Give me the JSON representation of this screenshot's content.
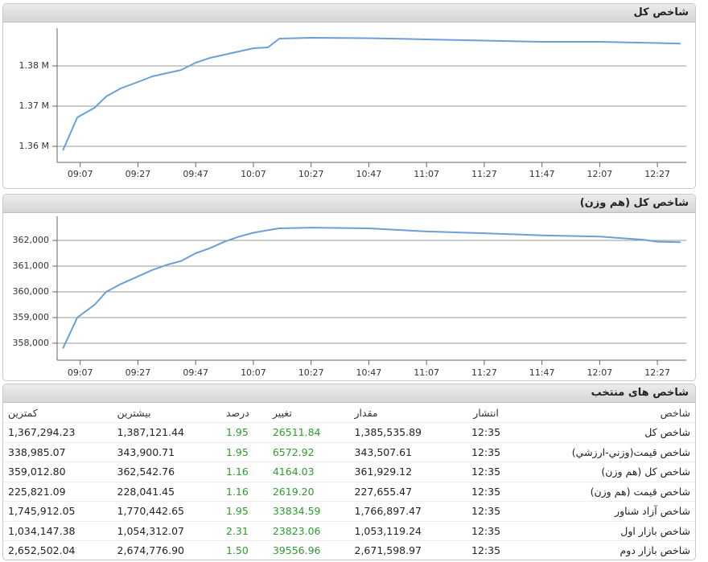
{
  "chart_data": [
    {
      "type": "line",
      "title": "شاخص کل",
      "x": [
        "09:01",
        "09:06",
        "09:12",
        "09:16",
        "09:21",
        "09:27",
        "09:32",
        "09:37",
        "09:42",
        "09:47",
        "09:52",
        "09:57",
        "10:02",
        "10:07",
        "10:12",
        "10:16",
        "10:27",
        "10:47",
        "11:07",
        "11:27",
        "11:47",
        "12:07",
        "12:27",
        "12:35"
      ],
      "series": [
        {
          "name": "شاخص کل",
          "color": "#6a9fd8",
          "values": [
            1359000,
            1367200,
            1369600,
            1372400,
            1374400,
            1376000,
            1377400,
            1378200,
            1379000,
            1380800,
            1382000,
            1382800,
            1383600,
            1384400,
            1384600,
            1386800,
            1387000,
            1386900,
            1386600,
            1386300,
            1386000,
            1386000,
            1385700,
            1385536
          ]
        }
      ],
      "xlim": [
        "08:59",
        "12:37"
      ],
      "xticks": [
        "09:07",
        "09:27",
        "09:47",
        "10:07",
        "10:27",
        "10:47",
        "11:07",
        "11:27",
        "11:47",
        "12:07",
        "12:27"
      ],
      "ylim": [
        1356000,
        1389400
      ],
      "yticks": [
        {
          "value": 1360000,
          "label": "1.36 M"
        },
        {
          "value": 1370000,
          "label": "1.37 M"
        },
        {
          "value": 1380000,
          "label": "1.38 M"
        }
      ],
      "grid": true
    },
    {
      "type": "line",
      "title": "شاخص کل (هم وزن)",
      "x": [
        "09:01",
        "09:06",
        "09:12",
        "09:16",
        "09:21",
        "09:27",
        "09:32",
        "09:37",
        "09:42",
        "09:47",
        "09:52",
        "09:57",
        "10:02",
        "10:07",
        "10:12",
        "10:16",
        "10:27",
        "10:47",
        "11:07",
        "11:27",
        "11:47",
        "12:07",
        "12:22",
        "12:27",
        "12:35"
      ],
      "series": [
        {
          "name": "شاخص کل (هم وزن)",
          "color": "#6a9fd8",
          "values": [
            357800,
            359000,
            359500,
            360000,
            360300,
            360600,
            360850,
            361050,
            361200,
            361500,
            361700,
            361950,
            362150,
            362300,
            362400,
            362470,
            362500,
            362470,
            362350,
            362280,
            362200,
            362150,
            362030,
            361950,
            361929
          ]
        }
      ],
      "xlim": [
        "08:59",
        "12:37"
      ],
      "xticks": [
        "09:07",
        "09:27",
        "09:47",
        "10:07",
        "10:27",
        "10:47",
        "11:07",
        "11:27",
        "11:47",
        "12:07",
        "12:27"
      ],
      "ylim": [
        357340,
        362940
      ],
      "yticks": [
        {
          "value": 358000,
          "label": "358,000"
        },
        {
          "value": 359000,
          "label": "359,000"
        },
        {
          "value": 360000,
          "label": "360,000"
        },
        {
          "value": 361000,
          "label": "361,000"
        },
        {
          "value": 362000,
          "label": "362,000"
        }
      ],
      "grid": true
    }
  ],
  "table": {
    "title": "شاخص های منتخب",
    "columns": [
      "شاخص",
      "انتشار",
      "مقدار",
      "تغییر",
      "درصد",
      "بیشترین",
      "کمترین"
    ],
    "rows": [
      [
        "شاخص کل",
        "12:35",
        "1,385,535.89",
        "26511.84",
        "1.95",
        "1,387,121.44",
        "1,367,294.23"
      ],
      [
        "شاخص قیمت(وزني-ارزشي)",
        "12:35",
        "343,507.61",
        "6572.92",
        "1.95",
        "343,900.71",
        "338,985.07"
      ],
      [
        "شاخص کل (هم وزن)",
        "12:35",
        "361,929.12",
        "4164.03",
        "1.16",
        "362,542.76",
        "359,012.80"
      ],
      [
        "شاخص قیمت (هم وزن)",
        "12:35",
        "227,655.47",
        "2619.20",
        "1.16",
        "228,041.45",
        "225,821.09"
      ],
      [
        "شاخص آزاد شناور",
        "12:35",
        "1,766,897.47",
        "33834.59",
        "1.95",
        "1,770,442.65",
        "1,745,912.05"
      ],
      [
        "شاخص بازار اول",
        "12:35",
        "1,053,119.24",
        "23823.06",
        "2.31",
        "1,054,312.07",
        "1,034,147.38"
      ],
      [
        "شاخص بازار دوم",
        "12:35",
        "2,671,598.97",
        "39556.96",
        "1.50",
        "2,674,776.90",
        "2,652,502.04"
      ]
    ]
  }
}
